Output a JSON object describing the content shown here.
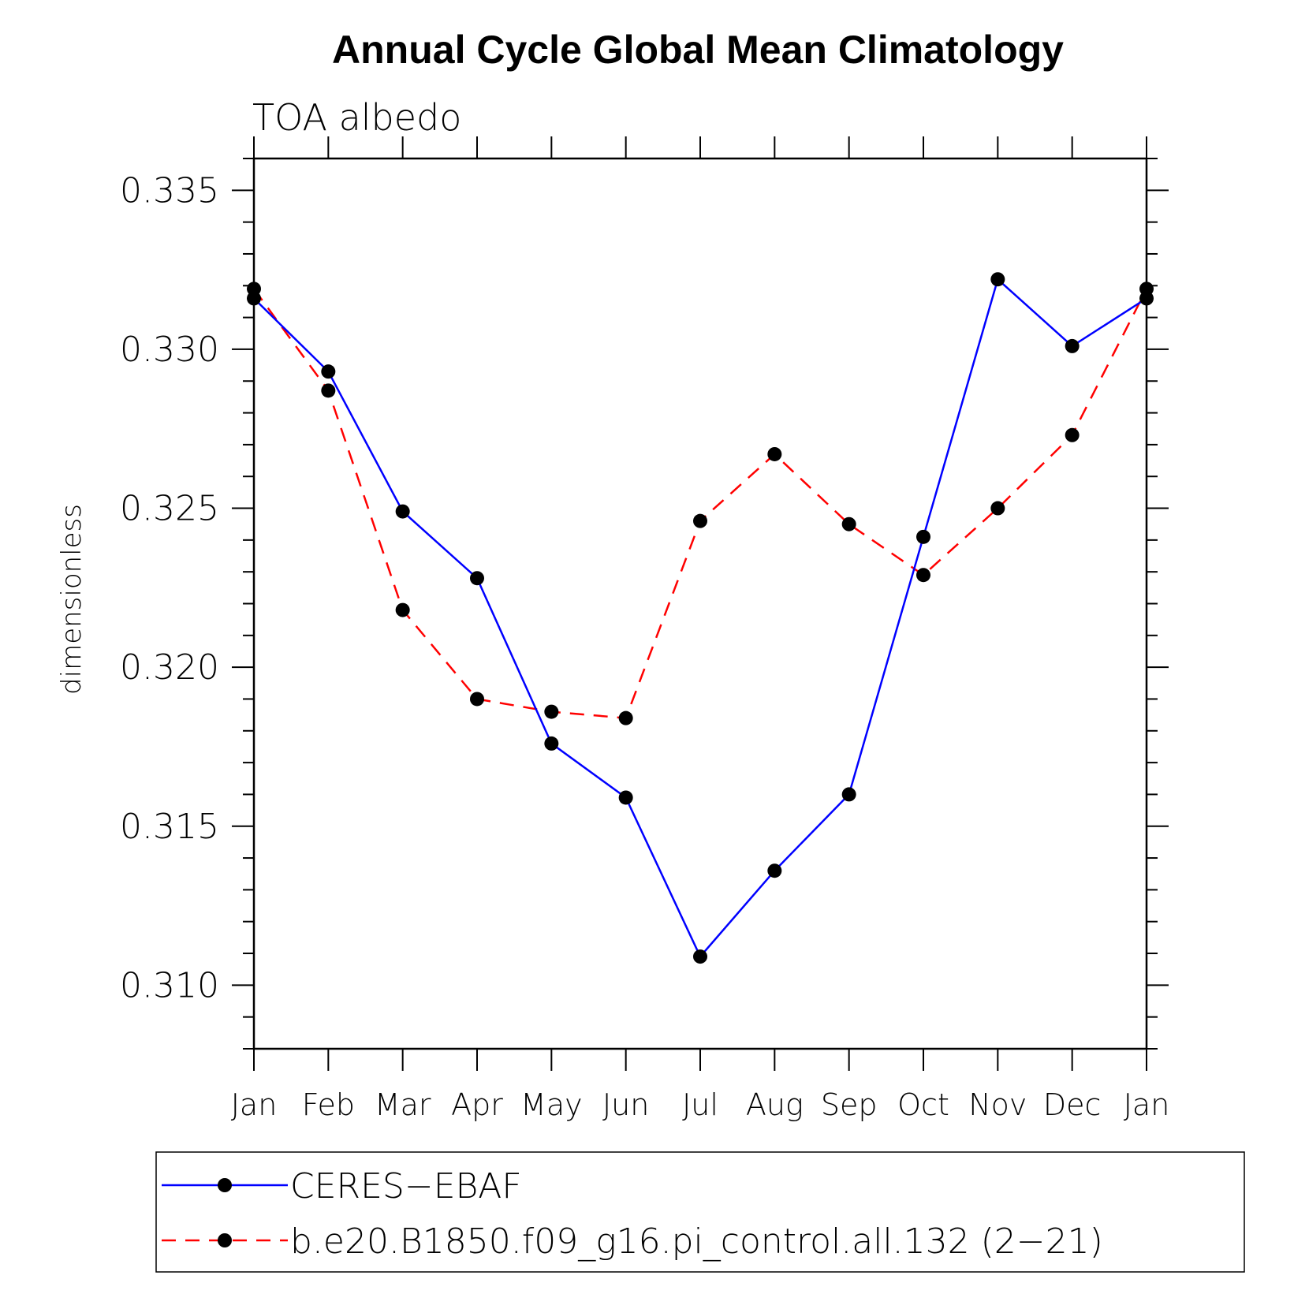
{
  "chart_data": {
    "type": "line",
    "title": "Annual Cycle Global Mean Climatology",
    "subtitle": "TOA albedo",
    "xlabel": "",
    "ylabel": "dimensionless",
    "categories": [
      "Jan",
      "Feb",
      "Mar",
      "Apr",
      "May",
      "Jun",
      "Jul",
      "Aug",
      "Sep",
      "Oct",
      "Nov",
      "Dec",
      "Jan"
    ],
    "ylim": [
      0.308,
      0.336
    ],
    "yticks": [
      "0.310",
      "0.315",
      "0.320",
      "0.325",
      "0.330",
      "0.335"
    ],
    "ytick_values": [
      0.31,
      0.315,
      0.32,
      0.325,
      0.33,
      0.335
    ],
    "grid": false,
    "legend_position": "bottom",
    "series": [
      {
        "name": "CERES−EBAF",
        "color": "#0000ff",
        "line_style": "solid",
        "marker": "filled-circle",
        "values": [
          0.3316,
          0.3293,
          0.3249,
          0.3228,
          0.3176,
          0.3159,
          0.3109,
          0.3136,
          0.316,
          0.3241,
          0.3322,
          0.3301,
          0.3316
        ]
      },
      {
        "name": "b.e20.B1850.f09_g16.pi_control.all.132 (2−21)",
        "color": "#ff0000",
        "line_style": "dashed",
        "marker": "filled-circle",
        "values": [
          0.3319,
          0.3287,
          0.3218,
          0.319,
          0.3186,
          0.3184,
          0.3246,
          0.3267,
          0.3245,
          0.3229,
          0.325,
          0.3273,
          0.3319
        ]
      }
    ]
  }
}
